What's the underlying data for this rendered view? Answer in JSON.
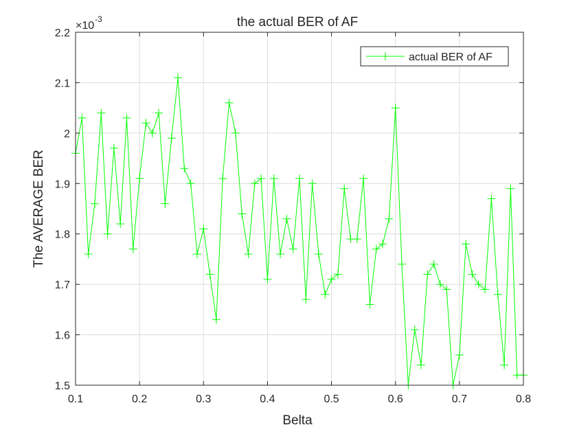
{
  "chart_data": {
    "type": "line",
    "title": "the actual BER of AF",
    "xlabel": "Belta",
    "ylabel": "The AVERAGE BER",
    "exponent_base": "×10",
    "exponent_power": "-3",
    "xlim": [
      0.1,
      0.8
    ],
    "ylim": [
      1.5,
      2.2
    ],
    "xticks": [
      "0.1",
      "0.2",
      "0.3",
      "0.4",
      "0.5",
      "0.6",
      "0.7",
      "0.8"
    ],
    "yticks": [
      "1.5",
      "1.6",
      "1.7",
      "1.8",
      "1.9",
      "2",
      "2.1",
      "2.2"
    ],
    "grid": true,
    "legend_position": "top-right",
    "line_color": "#00ff00",
    "series": [
      {
        "name": "actual BER of AF",
        "x": [
          0.1,
          0.11,
          0.12,
          0.13,
          0.14,
          0.15,
          0.16,
          0.17,
          0.18,
          0.19,
          0.2,
          0.21,
          0.22,
          0.23,
          0.24,
          0.25,
          0.26,
          0.27,
          0.28,
          0.29,
          0.3,
          0.31,
          0.32,
          0.33,
          0.34,
          0.35,
          0.36,
          0.37,
          0.38,
          0.39,
          0.4,
          0.41,
          0.42,
          0.43,
          0.44,
          0.45,
          0.46,
          0.47,
          0.48,
          0.49,
          0.5,
          0.51,
          0.52,
          0.53,
          0.54,
          0.55,
          0.56,
          0.57,
          0.58,
          0.59,
          0.6,
          0.61,
          0.62,
          0.63,
          0.64,
          0.65,
          0.66,
          0.67,
          0.68,
          0.69,
          0.7,
          0.71,
          0.72,
          0.73,
          0.74,
          0.75,
          0.76,
          0.77,
          0.78,
          0.79,
          0.8
        ],
        "y": [
          1.96,
          2.03,
          1.76,
          1.86,
          2.04,
          1.8,
          1.97,
          1.82,
          2.03,
          1.77,
          1.91,
          2.02,
          2.0,
          2.04,
          1.86,
          1.99,
          2.11,
          1.93,
          1.9,
          1.76,
          1.81,
          1.72,
          1.63,
          1.91,
          2.06,
          2.0,
          1.84,
          1.76,
          1.9,
          1.91,
          1.71,
          1.91,
          1.76,
          1.83,
          1.77,
          1.91,
          1.67,
          1.9,
          1.76,
          1.68,
          1.71,
          1.72,
          1.89,
          1.79,
          1.79,
          1.91,
          1.66,
          1.77,
          1.78,
          1.83,
          2.05,
          1.74,
          1.5,
          1.61,
          1.54,
          1.72,
          1.74,
          1.7,
          1.69,
          1.5,
          1.56,
          1.78,
          1.72,
          1.7,
          1.69,
          1.87,
          1.68,
          1.54,
          1.89,
          1.52,
          1.52
        ]
      }
    ]
  }
}
